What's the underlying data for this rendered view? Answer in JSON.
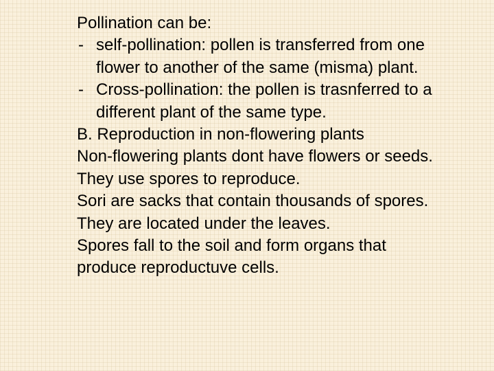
{
  "slide": {
    "background_color": "#faf0dc",
    "grid_color": "rgba(210,190,150,0.25)",
    "text_color": "#000000",
    "font_family": "Arial",
    "font_size_pt": 24,
    "intro": "Pollination can be:",
    "bullets": [
      "self-pollination: pollen is transferred from one flower to another of the same (misma) plant.",
      "Cross-pollination: the pollen is trasnferred to a different plant of the same type."
    ],
    "paragraphs": [
      "B. Reproduction in non-flowering plants",
      "Non-flowering plants dont have flowers or seeds. They use spores to reproduce.",
      "Sori are sacks that contain thousands of spores. They are located under the leaves.",
      "Spores fall to the soil and form organs that produce reproductuve cells."
    ]
  }
}
